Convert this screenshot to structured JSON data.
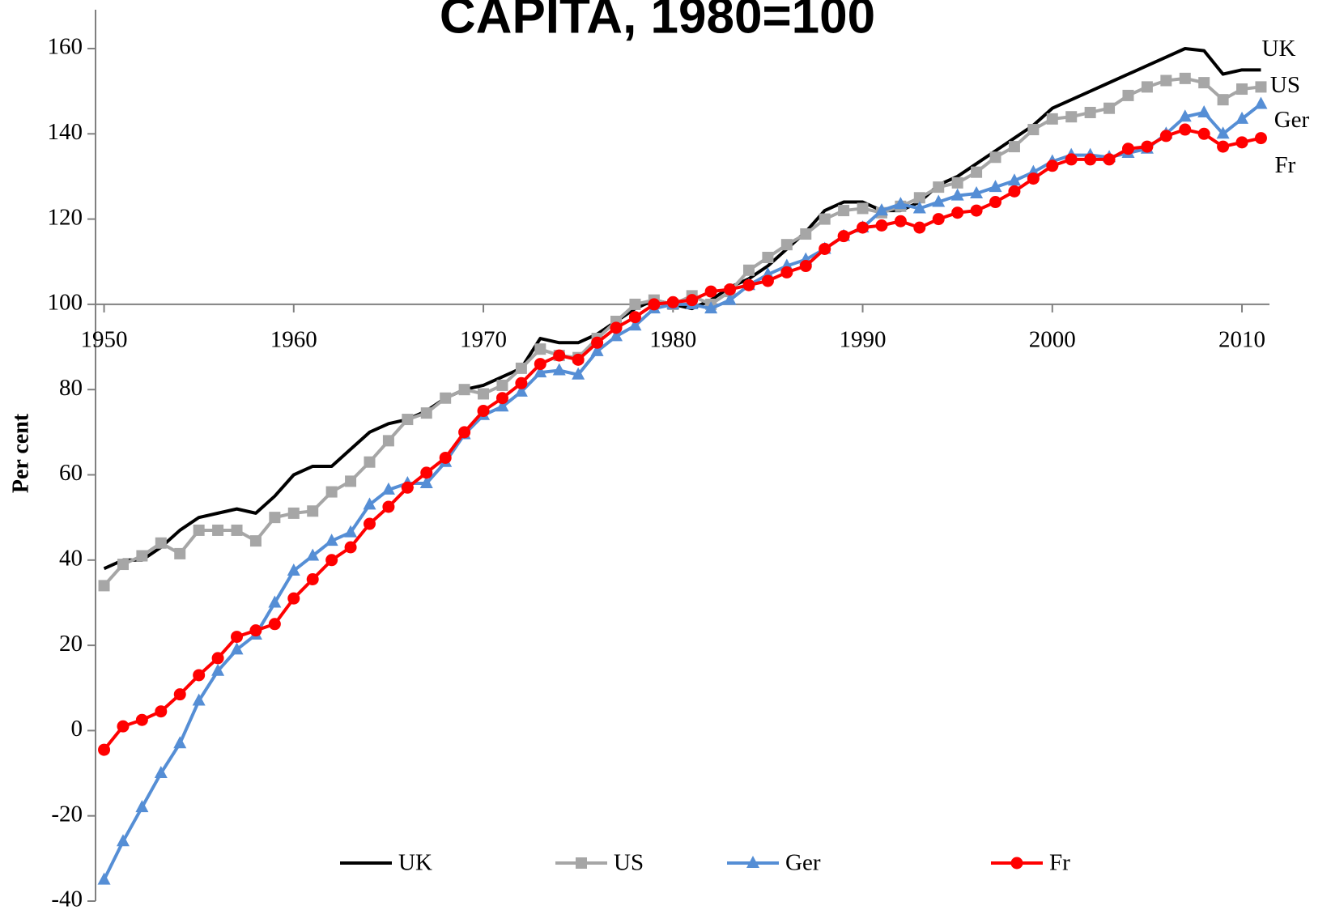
{
  "chart_data": {
    "type": "line",
    "title": "CAPITA, 1980=100",
    "y_label": "Per cent",
    "x": [
      1950,
      1951,
      1952,
      1953,
      1954,
      1955,
      1956,
      1957,
      1958,
      1959,
      1960,
      1961,
      1962,
      1963,
      1964,
      1965,
      1966,
      1967,
      1968,
      1969,
      1970,
      1971,
      1972,
      1973,
      1974,
      1975,
      1976,
      1977,
      1978,
      1979,
      1980,
      1981,
      1982,
      1983,
      1984,
      1985,
      1986,
      1987,
      1988,
      1989,
      1990,
      1991,
      1992,
      1993,
      1994,
      1995,
      1996,
      1997,
      1998,
      1999,
      2000,
      2001,
      2002,
      2003,
      2004,
      2005,
      2006,
      2007,
      2008,
      2009,
      2010,
      2011
    ],
    "series": [
      {
        "name": "UK",
        "color": "#000000",
        "marker": "none",
        "values": [
          38,
          40,
          40,
          43,
          47,
          50,
          51,
          52,
          51,
          55,
          60,
          62,
          62,
          66,
          70,
          72,
          73,
          75,
          78,
          80,
          81,
          83,
          85,
          92,
          91,
          91,
          93,
          96,
          99,
          101,
          100,
          99,
          101,
          104,
          106,
          109,
          113,
          117,
          122,
          124,
          124,
          122,
          122,
          124,
          128,
          130,
          133,
          136,
          139,
          142,
          146,
          148,
          150,
          152,
          154,
          156,
          158,
          160,
          159.5,
          154,
          155,
          155
        ]
      },
      {
        "name": "US",
        "color": "#a6a6a6",
        "marker": "square",
        "values": [
          34,
          39,
          41,
          44,
          41.5,
          47,
          47,
          47,
          44.5,
          50,
          51,
          51.5,
          56,
          58.5,
          63,
          68,
          73,
          74.5,
          78,
          80,
          79,
          81,
          85,
          89.5,
          88,
          87.5,
          92,
          96,
          100,
          101,
          100,
          102,
          100,
          103,
          108,
          111,
          114,
          116.5,
          120,
          122,
          122.5,
          121.5,
          123,
          125,
          127.5,
          128.5,
          131,
          134.5,
          137,
          141,
          143.5,
          144,
          145,
          146,
          149,
          151,
          152.5,
          153,
          152,
          148,
          150.5,
          151
        ]
      },
      {
        "name": "Ger",
        "color": "#558ed5",
        "marker": "triangle",
        "values": [
          -35,
          -26,
          -18,
          -10,
          -3,
          7,
          14,
          19,
          22.5,
          30,
          37.5,
          41,
          44.5,
          46.5,
          53,
          56.5,
          58,
          58,
          63,
          69.5,
          74,
          76,
          79.5,
          84,
          84.5,
          83.5,
          89,
          92.5,
          95,
          99,
          100,
          100,
          99,
          101,
          104.5,
          107,
          109,
          110.5,
          113,
          116,
          118,
          122,
          123.5,
          122.5,
          124,
          125.5,
          126,
          127.5,
          129,
          131,
          133.5,
          135,
          135,
          134.5,
          135.5,
          136.5,
          140,
          144,
          145,
          140,
          143.5,
          147
        ]
      },
      {
        "name": "Fr",
        "color": "#ff0000",
        "marker": "circle",
        "values": [
          -4.5,
          1,
          2.5,
          4.5,
          8.5,
          13,
          17,
          22,
          23.5,
          25,
          31,
          35.5,
          40,
          43,
          48.5,
          52.5,
          57,
          60.5,
          64,
          70,
          75,
          78,
          81.5,
          86,
          88,
          87,
          91,
          94.5,
          97,
          100,
          100.5,
          101,
          103,
          103.5,
          104.5,
          105.5,
          107.5,
          109,
          113,
          116,
          118,
          118.5,
          119.5,
          118,
          120,
          121.5,
          122,
          124,
          126.5,
          129.5,
          132.5,
          134,
          134,
          134,
          136.5,
          137,
          139.5,
          141,
          140,
          137,
          138,
          139
        ]
      }
    ],
    "xlim": [
      1949.55,
      2011.45
    ],
    "ylim": [
      -40,
      160
    ],
    "xticks": [
      1950,
      1960,
      1970,
      1980,
      1990,
      2000,
      2010
    ],
    "yticks": [
      -40,
      -20,
      0,
      20,
      40,
      60,
      80,
      100,
      120,
      140,
      160
    ],
    "x_axis_crosses": 100,
    "legend": "bottom",
    "end_labels": true
  }
}
